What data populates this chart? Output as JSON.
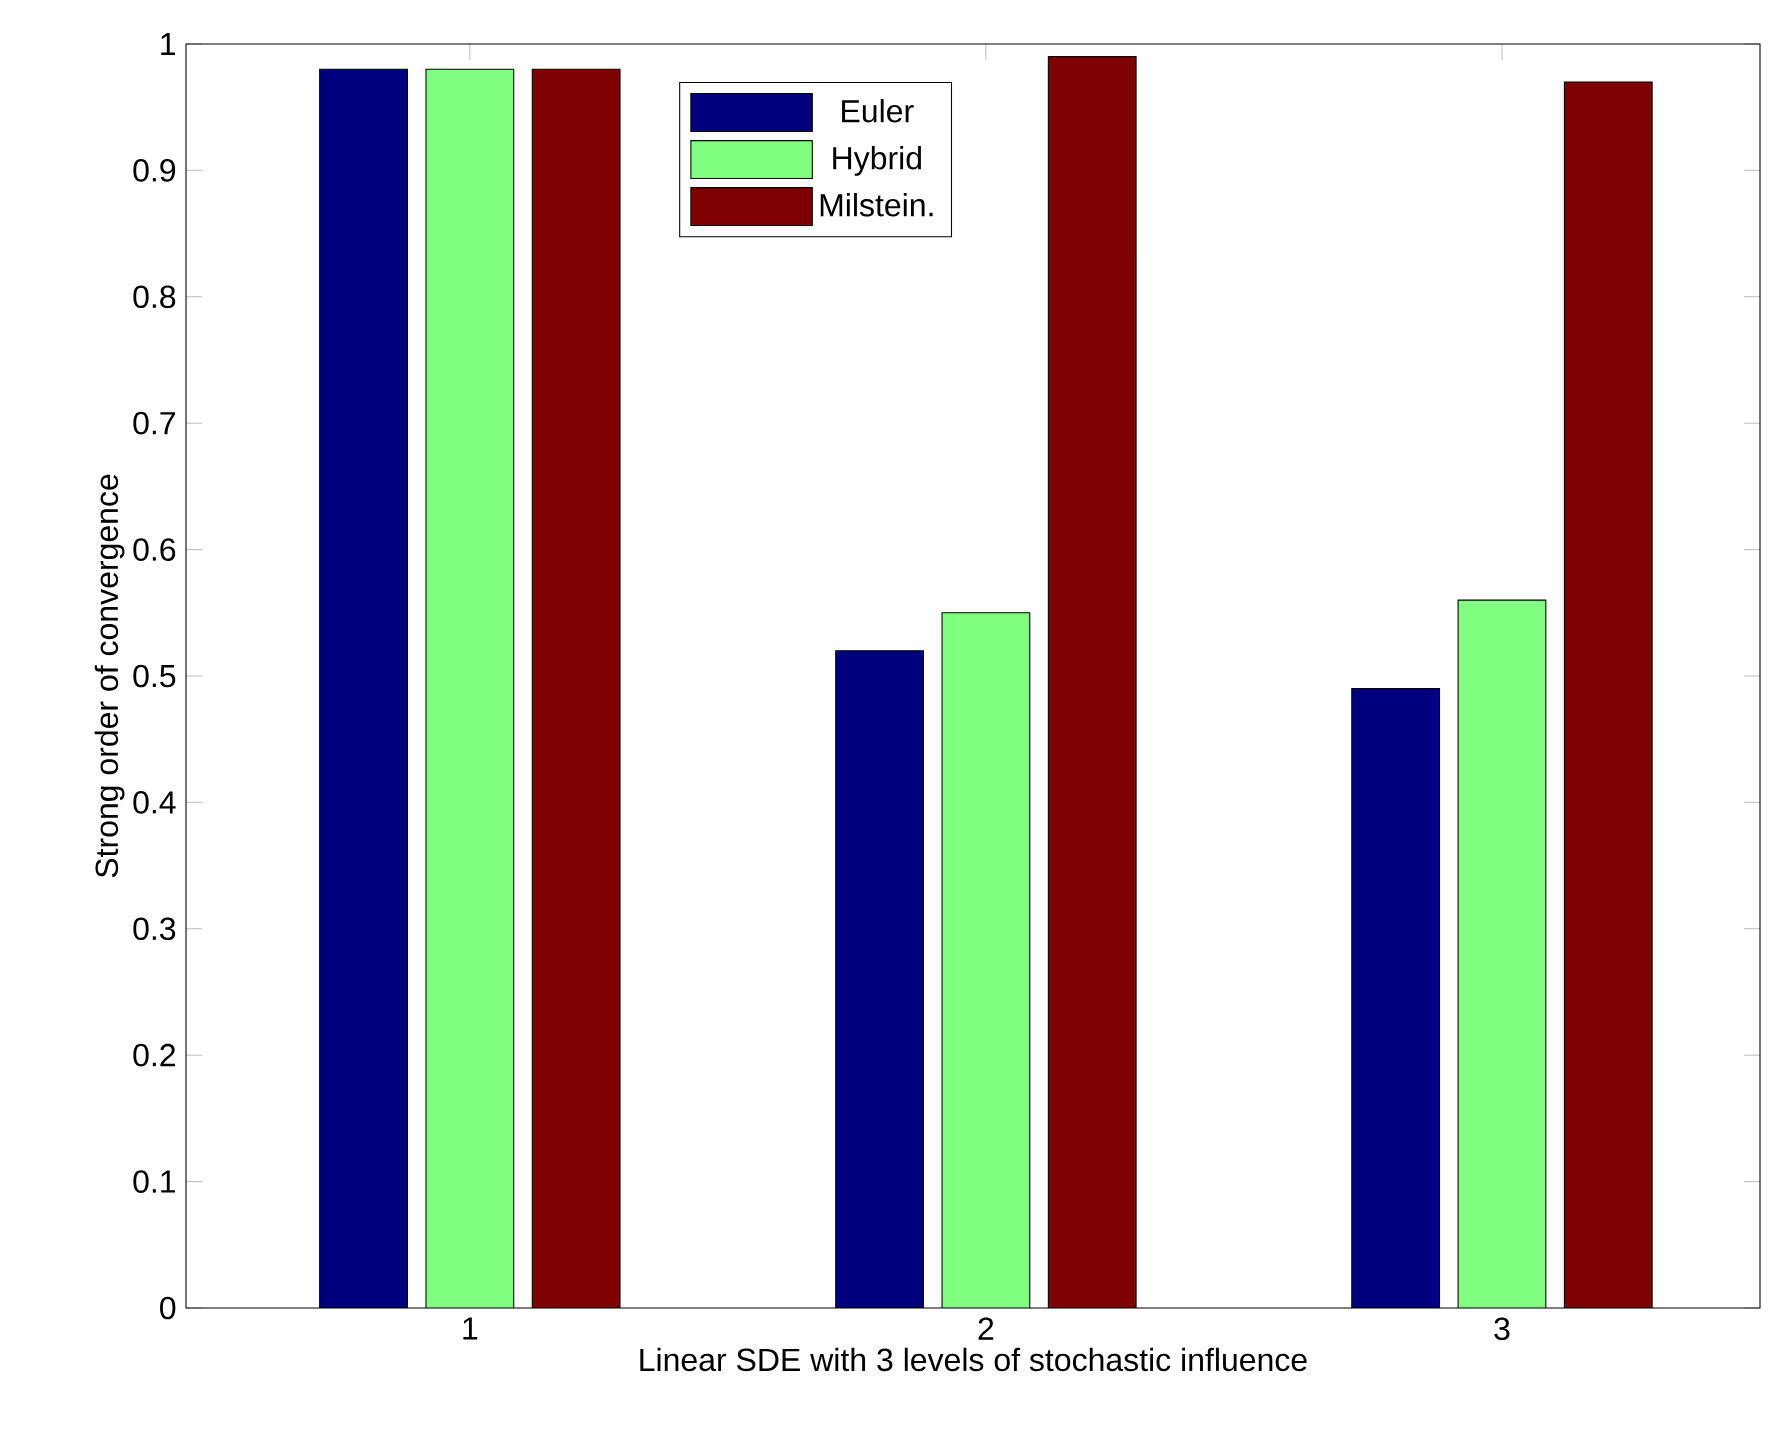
{
  "chart_data": {
    "type": "bar",
    "xlabel": "Linear SDE with 3 levels of stochastic influence",
    "ylabel": "Strong order of convergence",
    "categories": [
      "1",
      "2",
      "3"
    ],
    "series": [
      {
        "name": "Euler",
        "color": "#00007f",
        "values": [
          0.98,
          0.52,
          0.49
        ]
      },
      {
        "name": "Hybrid",
        "color": "#80ff80",
        "values": [
          0.98,
          0.55,
          0.56
        ]
      },
      {
        "name": "Milstein.",
        "color": "#7f0000",
        "values": [
          0.98,
          0.99,
          0.97
        ]
      }
    ],
    "ylim": [
      0,
      1
    ],
    "yticks": [
      0,
      0.1,
      0.2,
      0.3,
      0.4,
      0.5,
      0.6,
      0.7,
      0.8,
      0.9,
      1
    ],
    "grid": false,
    "legend": "top"
  }
}
